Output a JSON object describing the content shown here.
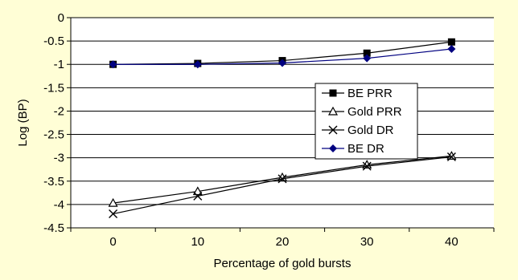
{
  "chart_data": {
    "type": "line",
    "categories": [
      "0",
      "10",
      "20",
      "30",
      "40"
    ],
    "x": [
      0,
      10,
      20,
      30,
      40
    ],
    "xlabel": "Percentage of gold bursts",
    "ylabel": "Log (BP)",
    "ylim": [
      -4.5,
      0
    ],
    "yticks": [
      "0",
      "-0.5",
      "-1",
      "-1.5",
      "-2",
      "-2.5",
      "-3",
      "-3.5",
      "-4",
      "-4.5"
    ],
    "grid": "horizontal",
    "legend_position": "center-right",
    "series": [
      {
        "name": "BE PRR",
        "values": [
          -1.0,
          -0.98,
          -0.92,
          -0.76,
          -0.52
        ],
        "marker": "square",
        "color": "#000000"
      },
      {
        "name": "Gold PRR",
        "values": [
          -3.97,
          -3.72,
          -3.42,
          -3.15,
          -2.96
        ],
        "marker": "triangle",
        "color": "#000000"
      },
      {
        "name": "Gold DR",
        "values": [
          -4.2,
          -3.82,
          -3.45,
          -3.18,
          -2.98
        ],
        "marker": "x",
        "color": "#000000"
      },
      {
        "name": "BE DR",
        "values": [
          -1.0,
          -1.0,
          -0.97,
          -0.87,
          -0.67
        ],
        "marker": "diamond",
        "color": "#000080"
      }
    ]
  }
}
